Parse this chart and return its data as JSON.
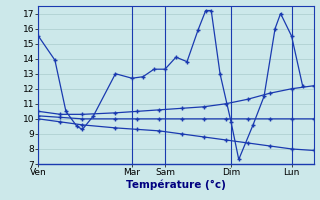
{
  "xlabel": "Température (°c)",
  "background_color": "#cce8ea",
  "grid_color": "#aacccc",
  "line_color": "#1a3ab0",
  "ylim": [
    7,
    17.5
  ],
  "yticks": [
    7,
    8,
    9,
    10,
    11,
    12,
    13,
    14,
    15,
    16,
    17
  ],
  "day_labels": [
    "Ven",
    "Mar",
    "Sam",
    "Dim",
    "Lun"
  ],
  "day_x": [
    0,
    8.5,
    11.5,
    17.5,
    23.0
  ],
  "xlim": [
    0,
    25
  ],
  "series": {
    "main": {
      "x": [
        0,
        1.5,
        2.5,
        3.5,
        4.0,
        5.0,
        7.0,
        8.5,
        9.5,
        10.5,
        11.5,
        12.5,
        13.5,
        14.5,
        15.2,
        15.7,
        16.5,
        17.5,
        18.2,
        19.5,
        20.5,
        21.5,
        22.0,
        23.0,
        24.0
      ],
      "y": [
        15.5,
        13.9,
        10.5,
        9.5,
        9.3,
        10.2,
        13.0,
        12.7,
        12.8,
        13.3,
        13.3,
        14.1,
        13.8,
        15.9,
        17.2,
        17.2,
        13.0,
        9.8,
        7.3,
        9.6,
        11.5,
        16.0,
        17.0,
        15.5,
        12.2
      ]
    },
    "rising": {
      "x": [
        0,
        2,
        4,
        7,
        9,
        11,
        13,
        15,
        17,
        19,
        21,
        23,
        25
      ],
      "y": [
        10.5,
        10.3,
        10.3,
        10.4,
        10.5,
        10.6,
        10.7,
        10.8,
        11.0,
        11.3,
        11.7,
        12.0,
        12.2
      ]
    },
    "flat": {
      "x": [
        0,
        2,
        4,
        7,
        9,
        11,
        13,
        15,
        17,
        19,
        21,
        23,
        25
      ],
      "y": [
        10.2,
        10.1,
        10.0,
        10.0,
        10.0,
        10.0,
        10.0,
        10.0,
        10.0,
        10.0,
        10.0,
        10.0,
        10.0
      ]
    },
    "descending": {
      "x": [
        0,
        2,
        4,
        7,
        9,
        11,
        13,
        15,
        17,
        19,
        21,
        23,
        25
      ],
      "y": [
        10.0,
        9.8,
        9.6,
        9.4,
        9.3,
        9.2,
        9.0,
        8.8,
        8.6,
        8.4,
        8.2,
        8.0,
        7.9
      ]
    }
  }
}
